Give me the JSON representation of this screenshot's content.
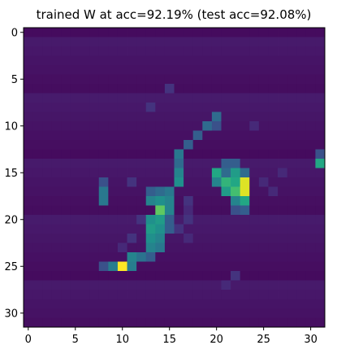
{
  "chart_data": {
    "type": "heatmap",
    "title": "trained W at acc=92.19% (test acc=92.08%)",
    "xlabel": "",
    "ylabel": "",
    "rows": 32,
    "cols": 32,
    "xlim": [
      -0.5,
      31.5
    ],
    "ylim": [
      31.5,
      -0.5
    ],
    "x_ticks": [
      0,
      5,
      10,
      15,
      20,
      25,
      30
    ],
    "y_ticks": [
      0,
      5,
      10,
      15,
      20,
      25,
      30
    ],
    "colormap": "viridis",
    "background_value": 0.03,
    "cells": [
      [
        25,
        9,
        0.42
      ],
      [
        25,
        10,
        1.0
      ],
      [
        25,
        11,
        0.42
      ],
      [
        25,
        8,
        0.25
      ],
      [
        24,
        11,
        0.45
      ],
      [
        24,
        12,
        0.38
      ],
      [
        24,
        13,
        0.3
      ],
      [
        23,
        13,
        0.45
      ],
      [
        23,
        14,
        0.4
      ],
      [
        22,
        13,
        0.5
      ],
      [
        22,
        14,
        0.45
      ],
      [
        21,
        13,
        0.55
      ],
      [
        21,
        14,
        0.5
      ],
      [
        21,
        15,
        0.3
      ],
      [
        20,
        13,
        0.5
      ],
      [
        20,
        14,
        0.55
      ],
      [
        20,
        15,
        0.3
      ],
      [
        19,
        14,
        0.75
      ],
      [
        19,
        15,
        0.45
      ],
      [
        18,
        13,
        0.45
      ],
      [
        18,
        14,
        0.5
      ],
      [
        18,
        15,
        0.45
      ],
      [
        17,
        13,
        0.3
      ],
      [
        17,
        14,
        0.35
      ],
      [
        17,
        15,
        0.4
      ],
      [
        16,
        16,
        0.5
      ],
      [
        15,
        16,
        0.45
      ],
      [
        14,
        16,
        0.35
      ],
      [
        13,
        16,
        0.4
      ],
      [
        12,
        17,
        0.3
      ],
      [
        11,
        18,
        0.3
      ],
      [
        10,
        19,
        0.35
      ],
      [
        10,
        20,
        0.25
      ],
      [
        9,
        20,
        0.35
      ],
      [
        15,
        20,
        0.6
      ],
      [
        15,
        21,
        0.35
      ],
      [
        15,
        22,
        0.55
      ],
      [
        15,
        23,
        0.35
      ],
      [
        14,
        21,
        0.3
      ],
      [
        14,
        22,
        0.3
      ],
      [
        16,
        20,
        0.45
      ],
      [
        16,
        21,
        0.65
      ],
      [
        16,
        22,
        0.6
      ],
      [
        16,
        23,
        0.95
      ],
      [
        17,
        21,
        0.55
      ],
      [
        17,
        22,
        0.7
      ],
      [
        17,
        23,
        0.95
      ],
      [
        18,
        22,
        0.45
      ],
      [
        18,
        23,
        0.6
      ],
      [
        19,
        22,
        0.25
      ],
      [
        19,
        23,
        0.3
      ],
      [
        18,
        8,
        0.4
      ],
      [
        17,
        8,
        0.4
      ],
      [
        16,
        8,
        0.25
      ],
      [
        14,
        31,
        0.6
      ],
      [
        13,
        31,
        0.25
      ],
      [
        16,
        11,
        0.15
      ],
      [
        20,
        12,
        0.15
      ],
      [
        22,
        11,
        0.15
      ],
      [
        23,
        10,
        0.12
      ],
      [
        20,
        17,
        0.15
      ],
      [
        21,
        16,
        0.15
      ],
      [
        19,
        17,
        0.12
      ],
      [
        18,
        17,
        0.15
      ],
      [
        22,
        17,
        0.12
      ],
      [
        16,
        25,
        0.12
      ],
      [
        17,
        26,
        0.12
      ],
      [
        15,
        27,
        0.12
      ],
      [
        8,
        13,
        0.15
      ],
      [
        6,
        15,
        0.15
      ],
      [
        10,
        24,
        0.12
      ],
      [
        26,
        22,
        0.15
      ],
      [
        27,
        21,
        0.12
      ]
    ]
  }
}
